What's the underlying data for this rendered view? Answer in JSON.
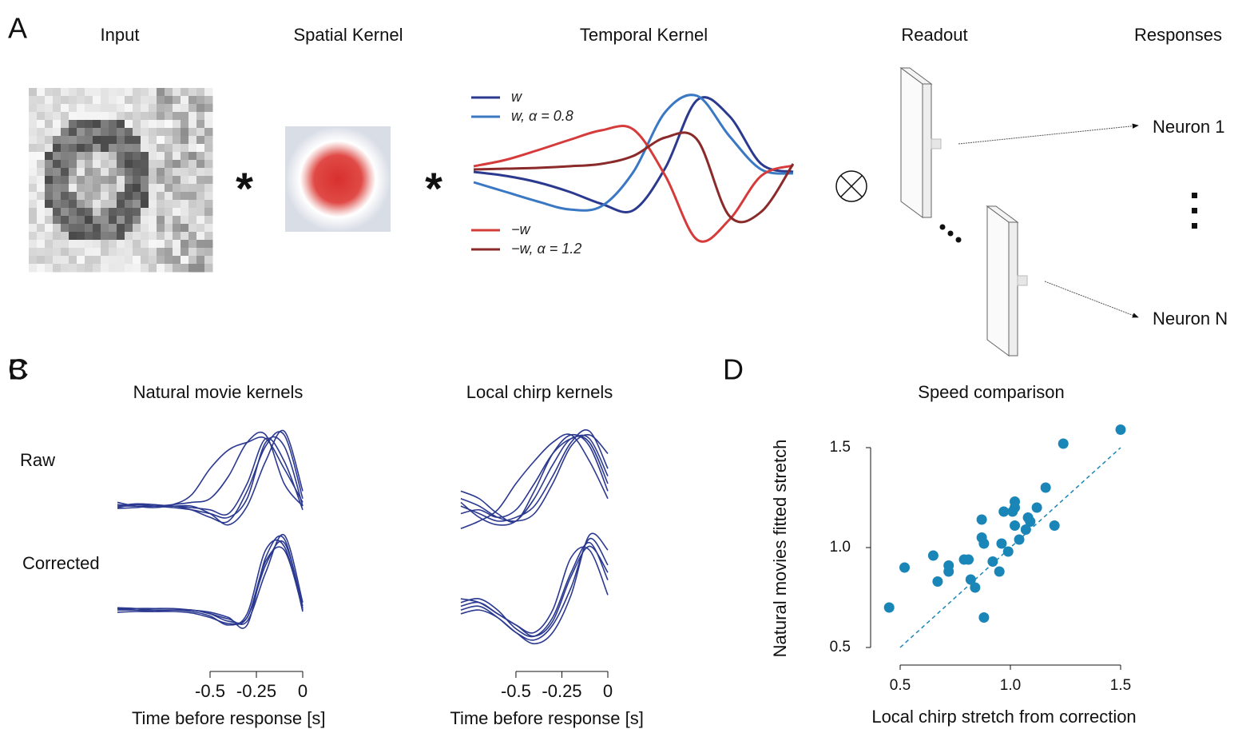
{
  "panel_a": {
    "label": "A",
    "titles": {
      "input": "Input",
      "spatial_kernel": "Spatial Kernel",
      "temporal_kernel": "Temporal Kernel",
      "readout": "Readout",
      "responses": "Responses"
    },
    "operators": [
      "*",
      "*"
    ],
    "neurons": [
      "Neuron 1",
      "Neuron N"
    ]
  },
  "chart_data": [
    {
      "type": "line",
      "series": [
        {
          "name": "w",
          "color": "#2b3a8f",
          "values": [
            0,
            -0.05,
            -0.13,
            -0.25,
            -0.4,
            -0.48,
            0.05,
            0.9,
            0.7,
            0.1,
            0
          ]
        },
        {
          "name": "w, α = 0.8",
          "color": "#3a78c4",
          "values": [
            -0.13,
            -0.25,
            -0.37,
            -0.47,
            -0.43,
            0,
            0.75,
            0.95,
            0.45,
            0.03,
            -0.02
          ]
        },
        {
          "name": "−w",
          "color": "#d63b3b",
          "values": [
            0.07,
            0.15,
            0.27,
            0.4,
            0.52,
            0.53,
            -0.05,
            -0.85,
            -0.6,
            -0.05,
            0.08
          ]
        },
        {
          "name": "−w, α = 1.2",
          "color": "#8b2a2a",
          "values": [
            0.03,
            0.04,
            0.05,
            0.07,
            0.1,
            0.2,
            0.43,
            0.4,
            -0.55,
            -0.5,
            0.1
          ]
        }
      ]
    },
    {
      "type": "line",
      "label": "B",
      "title": "Natural movie kernels",
      "xlabel": "Time before response [s]",
      "x": [
        -1,
        -0.9,
        -0.8,
        -0.7,
        -0.6,
        -0.5,
        -0.4,
        -0.3,
        -0.2,
        -0.1,
        0
      ],
      "xlim": [
        -1,
        0
      ],
      "xticks": [
        -0.5,
        -0.25,
        0
      ],
      "ylim": [
        -0.5,
        1.1
      ],
      "color": "#2b3990",
      "rows": [
        {
          "label": "Raw",
          "series": [
            {
              "values": [
                0,
                0,
                0,
                0,
                -0.02,
                -0.05,
                -0.1,
                0.3,
                0.9,
                0.6,
                -0.05
              ]
            },
            {
              "values": [
                0.02,
                0,
                0,
                0.02,
                0.05,
                0.1,
                0.4,
                0.85,
                0.95,
                0.3,
                0
              ]
            },
            {
              "values": [
                -0.03,
                -0.02,
                0,
                0,
                -0.05,
                -0.15,
                -0.2,
                0.2,
                0.8,
                0.95,
                0.1
              ]
            },
            {
              "values": [
                0,
                0.03,
                0.02,
                0,
                0,
                -0.1,
                -0.25,
                0,
                0.6,
                1,
                0.2
              ]
            },
            {
              "values": [
                0.05,
                0,
                -0.02,
                0.02,
                0.15,
                0.5,
                0.75,
                0.85,
                0.9,
                0.5,
                0.05
              ]
            },
            {
              "values": [
                -0.02,
                0.02,
                0,
                -0.02,
                -0.05,
                -0.1,
                -0.15,
                0.1,
                0.85,
                0.8,
                0
              ]
            }
          ]
        },
        {
          "label": "Corrected",
          "series": [
            {
              "values": [
                0,
                0,
                0,
                0,
                0,
                -0.05,
                -0.15,
                -0.1,
                0.6,
                0.9,
                0.05
              ]
            },
            {
              "values": [
                0.03,
                0.02,
                0,
                0,
                -0.02,
                -0.08,
                -0.2,
                -0.05,
                0.8,
                0.85,
                0
              ]
            },
            {
              "values": [
                -0.03,
                -0.02,
                -0.02,
                0,
                0,
                -0.05,
                -0.12,
                -0.15,
                0.5,
                1,
                0.1
              ]
            },
            {
              "values": [
                0,
                0.02,
                0.02,
                0.02,
                0,
                -0.03,
                -0.1,
                -0.2,
                0.7,
                0.95,
                -0.02
              ]
            },
            {
              "values": [
                0.02,
                0,
                -0.02,
                -0.02,
                -0.04,
                -0.1,
                -0.18,
                -0.1,
                0.65,
                0.8,
                0.02
              ]
            }
          ]
        }
      ]
    },
    {
      "type": "line",
      "label": "C",
      "title": "Local chirp kernels",
      "xlabel": "Time before response [s]",
      "x": [
        -0.8,
        -0.7,
        -0.6,
        -0.5,
        -0.4,
        -0.3,
        -0.2,
        -0.1,
        0
      ],
      "xlim": [
        -0.83,
        0
      ],
      "xticks": [
        -0.5,
        -0.25,
        0
      ],
      "ylim": [
        -0.5,
        1.1
      ],
      "color": "#2b3990",
      "rows": [
        {
          "series": [
            {
              "values": [
                0.2,
                0.1,
                -0.1,
                -0.2,
                0.2,
                0.7,
                0.95,
                0.8,
                0.2
              ]
            },
            {
              "values": [
                0,
                -0.1,
                -0.2,
                -0.15,
                0,
                0.4,
                0.85,
                1,
                0.5
              ]
            },
            {
              "values": [
                -0.3,
                -0.2,
                -0.05,
                0.3,
                0.6,
                0.85,
                0.95,
                0.6,
                0.1
              ]
            },
            {
              "values": [
                0.1,
                0,
                -0.15,
                -0.2,
                -0.1,
                0.3,
                0.8,
                0.95,
                0.7
              ]
            },
            {
              "values": [
                -0.1,
                -0.05,
                -0.15,
                -0.05,
                0.3,
                0.7,
                0.9,
                0.9,
                0.4
              ]
            },
            {
              "values": [
                0.05,
                -0.15,
                -0.25,
                -0.2,
                0.1,
                0.55,
                0.9,
                0.85,
                0.3
              ]
            }
          ]
        },
        {
          "series": [
            {
              "values": [
                0.1,
                0.15,
                0,
                -0.25,
                -0.35,
                -0.1,
                0.5,
                0.9,
                0.4
              ]
            },
            {
              "values": [
                0,
                0.05,
                -0.1,
                -0.3,
                -0.4,
                -0.2,
                0.3,
                0.95,
                0.6
              ]
            },
            {
              "values": [
                0.05,
                0.1,
                -0.05,
                -0.2,
                -0.3,
                0,
                0.7,
                0.8,
                0.2
              ]
            },
            {
              "values": [
                -0.05,
                0,
                -0.1,
                -0.3,
                -0.45,
                -0.3,
                0.2,
                1,
                0.8
              ]
            },
            {
              "values": [
                0.15,
                0.1,
                -0.05,
                -0.2,
                -0.35,
                -0.15,
                0.45,
                0.85,
                0.5
              ]
            }
          ]
        }
      ]
    },
    {
      "type": "scatter",
      "label": "D",
      "title": "Speed comparison",
      "xlabel": "Local chirp stretch from correction",
      "ylabel": "Natural movies fitted stretch",
      "color": "#1a86b8",
      "x": [
        0.45,
        0.52,
        0.65,
        0.67,
        0.72,
        0.72,
        0.79,
        0.81,
        0.82,
        0.84,
        0.87,
        0.87,
        0.88,
        0.88,
        0.92,
        0.95,
        0.96,
        0.97,
        0.99,
        1.01,
        1.02,
        1.02,
        1.02,
        1.04,
        1.07,
        1.08,
        1.09,
        1.12,
        1.16,
        1.2,
        1.24,
        1.5
      ],
      "values": [
        0.7,
        0.9,
        0.96,
        0.83,
        0.88,
        0.91,
        0.94,
        0.94,
        0.84,
        0.8,
        1.14,
        1.05,
        1.02,
        0.65,
        0.93,
        0.88,
        1.02,
        1.18,
        0.98,
        1.18,
        1.23,
        1.2,
        1.11,
        1.04,
        1.09,
        1.15,
        1.13,
        1.2,
        1.3,
        1.11,
        1.52,
        1.59
      ],
      "reference_line": {
        "x": [
          0.5,
          1.5
        ],
        "values": [
          0.5,
          1.5
        ],
        "style": "dashed"
      },
      "xlim": [
        0.4,
        1.55
      ],
      "ylim": [
        0.45,
        1.6
      ],
      "xticks": [
        0.5,
        {
          "value": 1,
          "label": "1.0"
        },
        1.5
      ],
      "yticks": [
        0.5,
        {
          "value": 1,
          "label": "1.0"
        },
        1.5
      ]
    }
  ]
}
